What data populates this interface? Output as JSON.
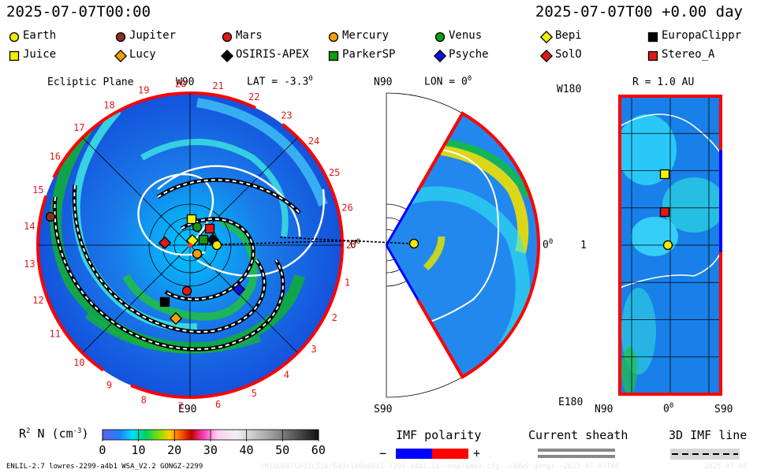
{
  "header": {
    "timestamp_left": "2025-07-07T00:00",
    "timestamp_right": "2025-07-07T00 +0.00 day"
  },
  "legend": {
    "spacecraft": [
      {
        "name": "Earth",
        "marker": "circle",
        "color": "#f2e900"
      },
      {
        "name": "Jupiter",
        "marker": "circle",
        "color": "#8b3020"
      },
      {
        "name": "Mars",
        "marker": "circle",
        "color": "#e01818"
      },
      {
        "name": "Mercury",
        "marker": "circle",
        "color": "#f5a000"
      },
      {
        "name": "Venus",
        "marker": "circle",
        "color": "#149a14"
      },
      {
        "name": "Bepi",
        "marker": "diamond",
        "color": "#f2f200"
      },
      {
        "name": "EuropaClippr",
        "marker": "square",
        "color": "#000000"
      },
      {
        "name": "Juice",
        "marker": "square",
        "color": "#f2f200"
      },
      {
        "name": "Lucy",
        "marker": "diamond",
        "color": "#f5a000"
      },
      {
        "name": "OSIRIS-APEX",
        "marker": "diamond",
        "color": "#000000"
      },
      {
        "name": "ParkerSP",
        "marker": "square",
        "color": "#149a14"
      },
      {
        "name": "Psyche",
        "marker": "diamond",
        "color": "#1010e0"
      },
      {
        "name": "SolO",
        "marker": "diamond",
        "color": "#e01818"
      },
      {
        "name": "Stereo_A",
        "marker": "square",
        "color": "#e01818"
      }
    ]
  },
  "panels": {
    "ecliptic": {
      "title": "Ecliptic Plane",
      "top_label": "W90",
      "lat_label": "LAT = -3.3",
      "deg_sup": "0",
      "bottom_label": "E90",
      "right_label": "0",
      "sector_numbers": [
        "18",
        "19",
        "20",
        "21",
        "22",
        "23",
        "24",
        "25",
        "26",
        "27",
        "1",
        "2",
        "3",
        "4",
        "5",
        "6",
        "7",
        "8",
        "9",
        "10",
        "11",
        "12",
        "13",
        "14",
        "15",
        "16",
        "17"
      ]
    },
    "meridional": {
      "top_left_label": "N90",
      "lon_label": "LON = 0",
      "deg_sup": "0",
      "right_label": "0",
      "bottom_left_label": "S90"
    },
    "sphere": {
      "r_label": "R = 1.0 AU",
      "top_left_label": "W180",
      "bottom_left_label": "E180",
      "middle_left_label": "1",
      "bottom_ticks": [
        "N90",
        "0",
        "S90"
      ],
      "deg_sup": "0"
    }
  },
  "colorbar": {
    "label": "R",
    "label_sup": "2",
    "label_rest": " N (cm",
    "label_unit_sup": "-3",
    "label_end": ")",
    "ticks": [
      "0",
      "10",
      "20",
      "30",
      "40",
      "50",
      "60"
    ]
  },
  "imf_polarity": {
    "title": "IMF polarity",
    "minus": "−",
    "plus": "+",
    "colors": {
      "negative": "#0000ff",
      "positive": "#ff0000"
    }
  },
  "current_sheath": {
    "title": "Current sheath"
  },
  "imf_line": {
    "title": "3D IMF line"
  },
  "footer": {
    "model_info": "ENLIL-2.7 lowres-2299-a4b1 WSA_V2.2 GONGZ-2299",
    "run_info": "UNIQUE07C601c55b/640x180x60x1-2299-a4b1.16--noplumes.cfg--s4dw2.gongz--2025-07-07T00",
    "run_info_right": "2025-07-08"
  }
}
